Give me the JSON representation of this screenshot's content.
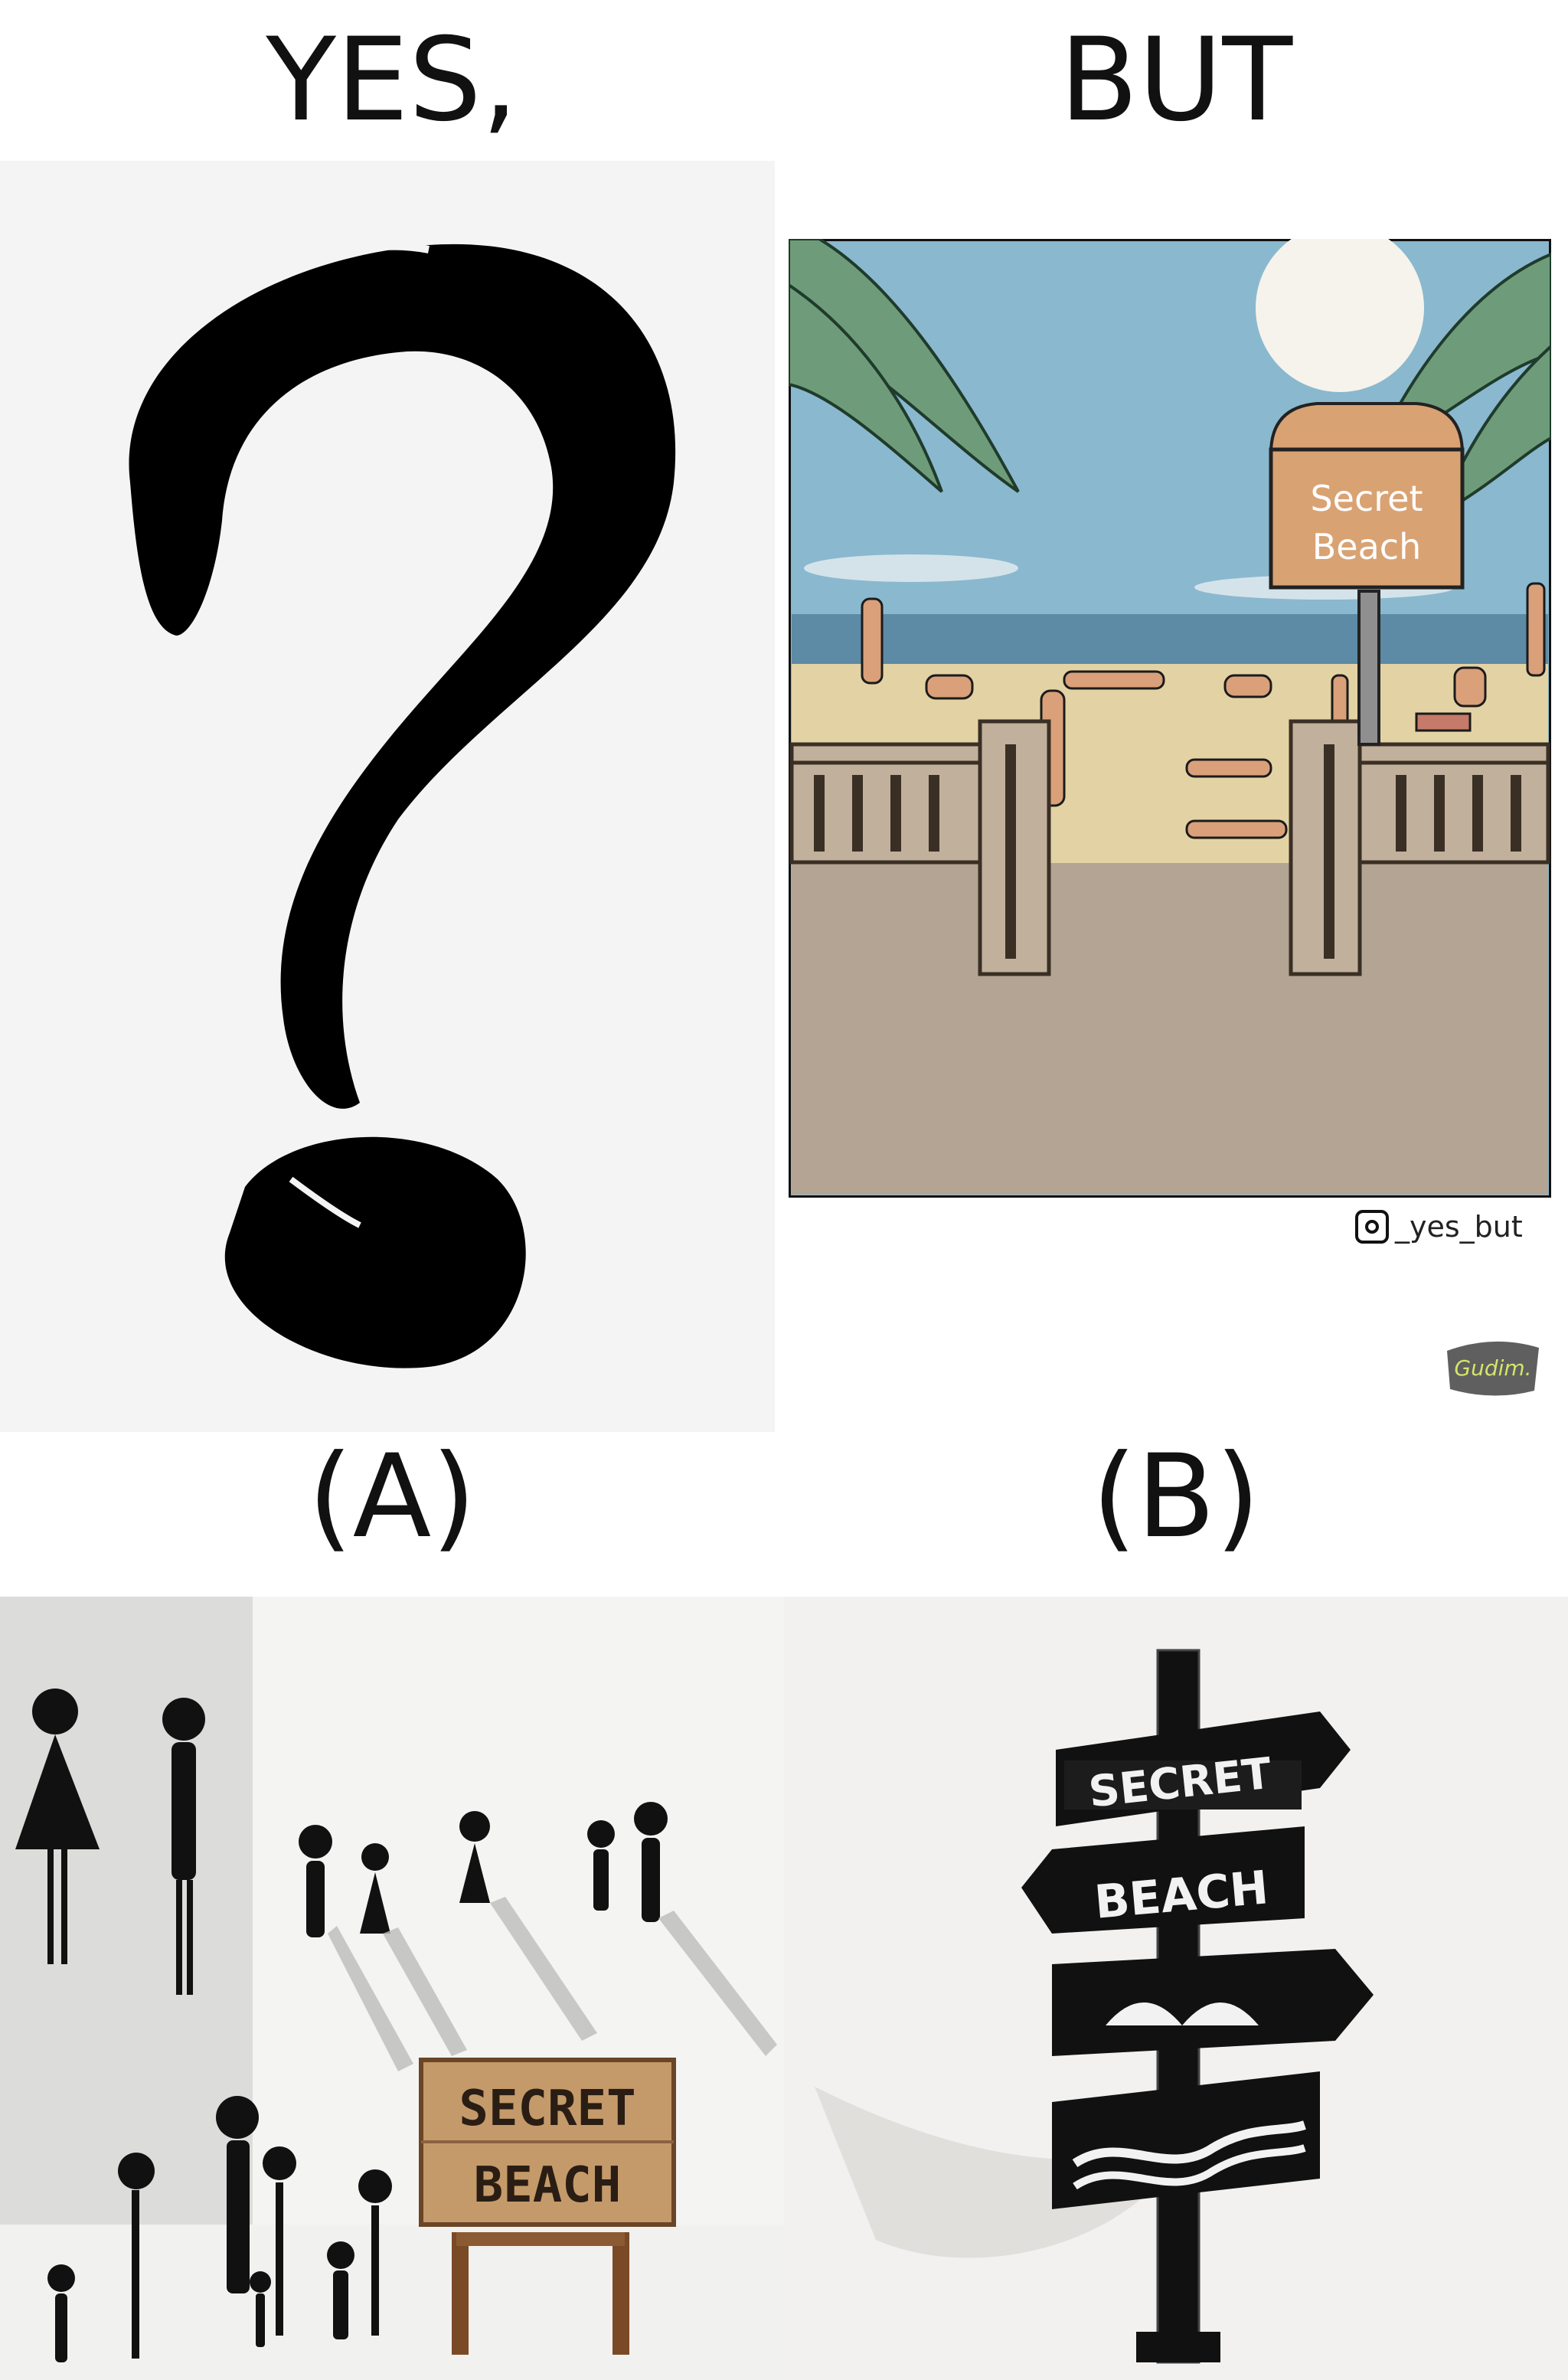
{
  "headings": {
    "yes": "YES,",
    "but": "BUT"
  },
  "options": {
    "a": "(A)",
    "b": "(B)"
  },
  "comic": {
    "sign_line1": "Secret",
    "sign_line2": "Beach",
    "credit": "_yes_but",
    "badge": "Gudim."
  },
  "option_a": {
    "sign_line1": "SECRET",
    "sign_line2": "BEACH"
  },
  "option_b": {
    "sign_line1": "SECRET",
    "sign_line2": "BEACH"
  },
  "icons": {
    "credit_icon": "instagram-icon",
    "placeholder_icon": "question-mark-icon"
  }
}
